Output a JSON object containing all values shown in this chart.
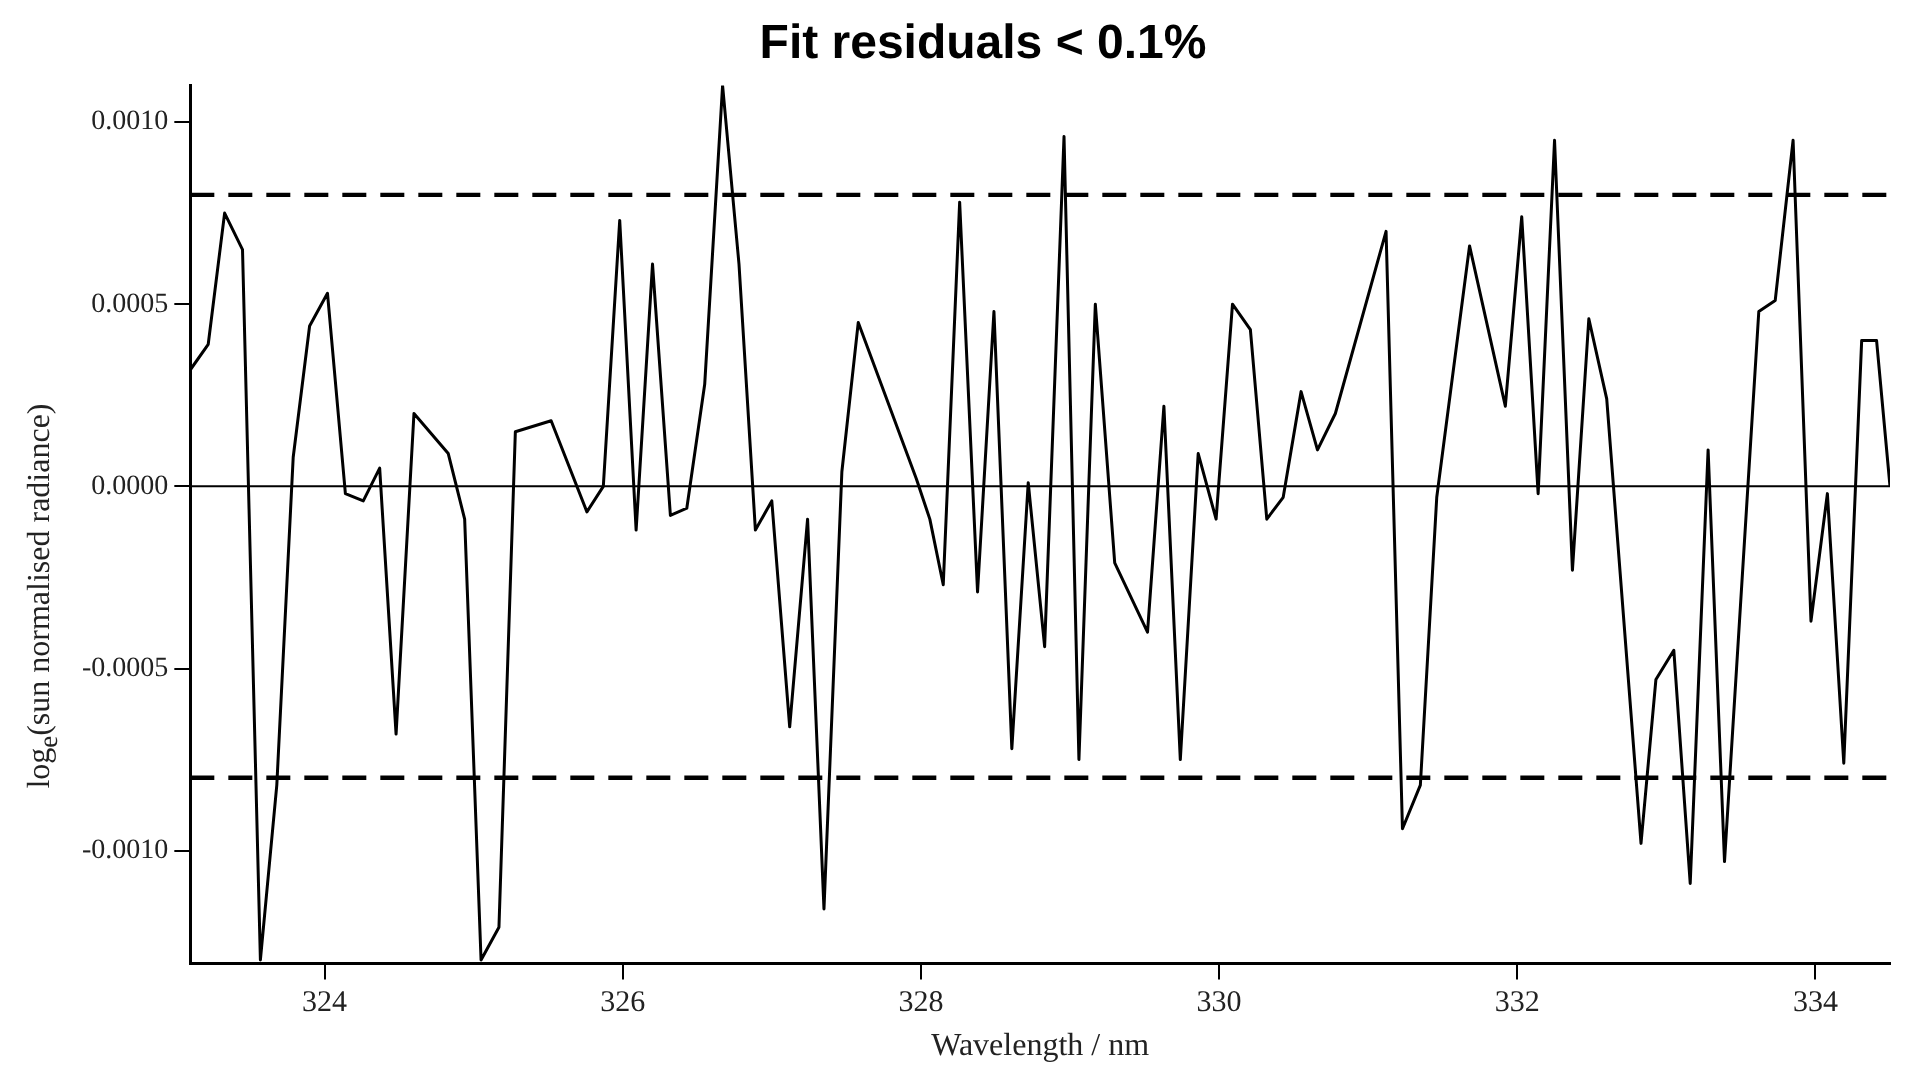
{
  "chart_data": {
    "type": "line",
    "title": "Fit residuals < 0.1%",
    "xlabel": "Wavelength / nm",
    "ylabel": "log$_{e}$(sun normalised radiance)",
    "xlim": [
      323.1,
      334.5
    ],
    "xticks": [
      324,
      326,
      328,
      330,
      332,
      334
    ],
    "ylim": [
      -0.00131,
      0.0011
    ],
    "yticks": [
      {
        "value": -0.001,
        "label": "-0.0010"
      },
      {
        "value": -0.0005,
        "label": "-0.0005"
      },
      {
        "value": 0,
        "label": "0.0000"
      },
      {
        "value": 0.0005,
        "label": "0.0005"
      },
      {
        "value": 0.001,
        "label": "0.0010"
      }
    ],
    "grid": false,
    "legend": false,
    "marker": "none",
    "line_style": "solid",
    "ref_lines": [
      {
        "axis": "y",
        "value": 0.0008,
        "line_style": "dashed",
        "color": "#000000"
      },
      {
        "axis": "y",
        "value": -0.0008,
        "line_style": "dashed",
        "color": "#000000"
      },
      {
        "axis": "y",
        "value": 0,
        "line_style": "solid",
        "color": "#000000"
      }
    ],
    "series": [
      {
        "color": "#000000",
        "x": [
          323.1,
          323.22,
          323.33,
          323.45,
          323.57,
          323.68,
          323.79,
          323.9,
          324.02,
          324.14,
          324.26,
          324.37,
          324.48,
          324.6,
          324.83,
          324.94,
          325.05,
          325.17,
          325.28,
          325.52,
          325.76,
          325.87,
          325.98,
          326.09,
          326.2,
          326.32,
          326.43,
          326.55,
          326.67,
          326.78,
          326.89,
          327.0,
          327.12,
          327.24,
          327.35,
          327.47,
          327.58,
          327.97,
          328.06,
          328.15,
          328.26,
          328.38,
          328.49,
          328.61,
          328.72,
          328.83,
          328.96,
          329.06,
          329.17,
          329.3,
          329.52,
          329.63,
          329.74,
          329.86,
          329.98,
          330.09,
          330.21,
          330.32,
          330.43,
          330.55,
          330.66,
          330.78,
          331.12,
          331.23,
          331.35,
          331.46,
          331.68,
          331.92,
          332.03,
          332.14,
          332.25,
          332.37,
          332.48,
          332.6,
          332.83,
          332.93,
          333.05,
          333.16,
          333.28,
          333.39,
          333.62,
          333.73,
          333.85,
          333.97,
          334.08,
          334.19,
          334.31,
          334.41,
          334.5
        ],
        "values": [
          0.00032,
          0.00039,
          0.00075,
          0.00065,
          -0.0013,
          -0.00082,
          8e-05,
          0.00044,
          0.00053,
          -2e-05,
          -4e-05,
          5e-05,
          -0.00068,
          0.0002,
          9e-05,
          -9e-05,
          -0.0013,
          -0.00121,
          0.00015,
          0.00018,
          -7e-05,
          0.0,
          0.00073,
          -0.00012,
          0.00061,
          -8e-05,
          -6e-05,
          0.00028,
          0.0011,
          0.00061,
          -0.00012,
          -4e-05,
          -0.00066,
          -9e-05,
          -0.00116,
          4e-05,
          0.00045,
          2e-05,
          -9e-05,
          -0.00027,
          0.00078,
          -0.00029,
          0.00048,
          -0.00072,
          1e-05,
          -0.00044,
          0.00096,
          -0.00075,
          0.0005,
          -0.00021,
          -0.0004,
          0.00022,
          -0.00075,
          9e-05,
          -9e-05,
          0.0005,
          0.00043,
          -9e-05,
          -3e-05,
          0.00026,
          0.0001,
          0.0002,
          0.0007,
          -0.00094,
          -0.00082,
          -3e-05,
          0.00066,
          0.00022,
          0.00074,
          -2e-05,
          0.00095,
          -0.00023,
          0.00046,
          0.00024,
          -0.00098,
          -0.00053,
          -0.00045,
          -0.00109,
          0.0001,
          -0.00103,
          0.00048,
          0.00051,
          0.00095,
          -0.00037,
          -2e-05,
          -0.00076,
          0.0004,
          0.0004,
          0.0
        ]
      }
    ]
  }
}
